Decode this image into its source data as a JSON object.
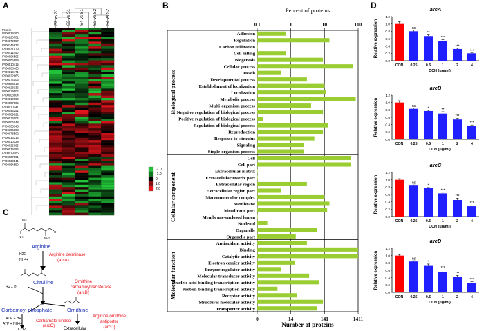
{
  "panels": {
    "a": "A",
    "b": "B",
    "c": "C",
    "d": "D"
  },
  "panelA": {
    "column_labels": [
      "S2 vs S1",
      "S3 vs S1",
      "S4 vs S1",
      "S3 vs S2",
      "S4 vs S2"
    ],
    "row_header": "Protein",
    "proteins": [
      "IPI00029260",
      "IPI00220701",
      "IPI00072957",
      "IPI00745872",
      "IPI00031479",
      "IPI00411440",
      "IPI00004505",
      "IPI00005659",
      "IPI00010415",
      "IPI00008460",
      "IPI00019471",
      "IPI00022665",
      "IPI00174103",
      "IPI00888918",
      "IPI00028136",
      "IPI00019502",
      "IPI00008604",
      "IPI00010990",
      "IPI00007905",
      "IPI00010241",
      "IPI00043251",
      "IPI00009021",
      "IPI00013004",
      "IPI00006048",
      "IPI00306343",
      "IPI00304808",
      "IPI00078502",
      "IPI00016314",
      "IPI00010129",
      "IPI00025065",
      "IPI00079186",
      "IPI00019185",
      "IPI00307061",
      "IPI00033541",
      "IPI00064550"
    ],
    "color_key_labels": [
      "2.0",
      "1.0",
      "0",
      "-1.0",
      "-2.0"
    ],
    "colors": {
      "up": "#e8141c",
      "down": "#22c53a",
      "zero": "#000000"
    }
  },
  "panelB": {
    "title": "Percent of proteins",
    "xlabel": "Number of proteins",
    "top_ticks": [
      "0.1",
      "1",
      "10",
      "100"
    ],
    "bottom_ticks": [
      "0",
      "14",
      "141",
      "1411"
    ],
    "bar_color": "#9acd32",
    "groups": [
      "Biological process",
      "Cellular component",
      "Molecular function"
    ]
  },
  "chart_data": {
    "type": "bar",
    "orientation": "horizontal",
    "title": "Percent of proteins",
    "xlabel": "Number of proteins",
    "xscale": "log",
    "xlim_percent": [
      0.1,
      100
    ],
    "total_proteins": 1411,
    "categories": [
      {
        "group": "Biological process",
        "name": "Adhesion",
        "percent": 0.7
      },
      {
        "group": "Biological process",
        "name": "Regulation",
        "percent": 14
      },
      {
        "group": "Biological process",
        "name": "Carbon utilization",
        "percent": 0.1
      },
      {
        "group": "Biological process",
        "name": "Cell killing",
        "percent": 0.7
      },
      {
        "group": "Biological process",
        "name": "Biogenesis",
        "percent": 9
      },
      {
        "group": "Biological process",
        "name": "Cellular process",
        "percent": 70
      },
      {
        "group": "Biological process",
        "name": "Death",
        "percent": 0.5
      },
      {
        "group": "Biological process",
        "name": "Developmental process",
        "percent": 3
      },
      {
        "group": "Biological process",
        "name": "Establishment of localization",
        "percent": 10
      },
      {
        "group": "Biological process",
        "name": "Localization",
        "percent": 11
      },
      {
        "group": "Biological process",
        "name": "Metabolic process",
        "percent": 85
      },
      {
        "group": "Biological process",
        "name": "Multi-organism process",
        "percent": 4
      },
      {
        "group": "Biological process",
        "name": "Negative regulation of biological process",
        "percent": 9
      },
      {
        "group": "Biological process",
        "name": "Positive regulation of biological process",
        "percent": 0.15
      },
      {
        "group": "Biological process",
        "name": "Regulation of biological process",
        "percent": 13
      },
      {
        "group": "Biological process",
        "name": "Reproduction",
        "percent": 9
      },
      {
        "group": "Biological process",
        "name": "Response to stimulus",
        "percent": 5
      },
      {
        "group": "Biological process",
        "name": "Signaling",
        "percent": 2.5
      },
      {
        "group": "Biological process",
        "name": "Single-organism process",
        "percent": 2.5
      },
      {
        "group": "Cellular component",
        "name": "Cell",
        "percent": 60
      },
      {
        "group": "Cellular component",
        "name": "Cell part",
        "percent": 60
      },
      {
        "group": "Cellular component",
        "name": "Extracellular matrix",
        "percent": 0.1
      },
      {
        "group": "Cellular component",
        "name": "Extracellular matrix part",
        "percent": 0.1
      },
      {
        "group": "Cellular component",
        "name": "Extracellular region",
        "percent": 3
      },
      {
        "group": "Cellular component",
        "name": "Extracellular region part",
        "percent": 0.5
      },
      {
        "group": "Cellular component",
        "name": "Macromolecular complex",
        "percent": 10
      },
      {
        "group": "Cellular component",
        "name": "Membrane",
        "percent": 14
      },
      {
        "group": "Cellular component",
        "name": "Membrane part",
        "percent": 12
      },
      {
        "group": "Cellular component",
        "name": "Membrane-enclosed lumen",
        "percent": 0.1
      },
      {
        "group": "Cellular component",
        "name": "Nucleoid",
        "percent": 0.2
      },
      {
        "group": "Cellular component",
        "name": "Organelle",
        "percent": 6
      },
      {
        "group": "Cellular component",
        "name": "Organelle part",
        "percent": 1.4
      },
      {
        "group": "Molecular function",
        "name": "Antioxidant activity",
        "percent": 3
      },
      {
        "group": "Molecular function",
        "name": "Binding",
        "percent": 100
      },
      {
        "group": "Molecular function",
        "name": "Catalytic activity",
        "percent": 100
      },
      {
        "group": "Molecular function",
        "name": "Electron carrier activity",
        "percent": 1.3
      },
      {
        "group": "Molecular function",
        "name": "Enzyme regulator activity",
        "percent": 0.5
      },
      {
        "group": "Molecular function",
        "name": "Molecular transducer activity",
        "percent": 3.5
      },
      {
        "group": "Molecular function",
        "name": "Nucleic acid binding transcription activity",
        "percent": 7
      },
      {
        "group": "Molecular function",
        "name": "Protein binding transcription activity",
        "percent": 0.4
      },
      {
        "group": "Molecular function",
        "name": "Receptor activity",
        "percent": 1.5
      },
      {
        "group": "Molecular function",
        "name": "Structural molecular activity",
        "percent": 9
      },
      {
        "group": "Molecular function",
        "name": "Transporter activity",
        "percent": 6
      }
    ],
    "expression": {
      "type": "bar",
      "xlabel": "DCH (μg/ml)",
      "ylabel": "Relative expression",
      "ylim": [
        0,
        1.2
      ],
      "yticks": [
        "0.0",
        "0.2",
        "0.4",
        "0.6",
        "0.8",
        "1.0",
        "1.2"
      ],
      "categories": [
        "CON",
        "0.25",
        "0.5",
        "1",
        "2",
        "4"
      ],
      "colors": {
        "control": "#ff0000",
        "treated": "#1f1fff"
      },
      "genes": [
        {
          "name": "arcA",
          "values": [
            1.0,
            0.8,
            0.67,
            0.53,
            0.32,
            0.2
          ],
          "errors": [
            0.06,
            0.03,
            0.03,
            0.04,
            0.02,
            0.01
          ],
          "sig": [
            "",
            "ns",
            "**",
            "***",
            "***",
            "***"
          ]
        },
        {
          "name": "arcB",
          "values": [
            1.0,
            0.83,
            0.77,
            0.7,
            0.54,
            0.37
          ],
          "errors": [
            0.05,
            0.02,
            0.02,
            0.05,
            0.03,
            0.02
          ],
          "sig": [
            "",
            "ns",
            "*",
            "**",
            "***",
            "***"
          ]
        },
        {
          "name": "arcC",
          "values": [
            1.0,
            0.84,
            0.77,
            0.63,
            0.45,
            0.28
          ],
          "errors": [
            0.03,
            0.02,
            0.02,
            0.03,
            0.05,
            0.03
          ],
          "sig": [
            "",
            "ns",
            "*",
            "***",
            "***",
            "***"
          ]
        },
        {
          "name": "arcD",
          "values": [
            1.0,
            0.84,
            0.72,
            0.56,
            0.42,
            0.26
          ],
          "errors": [
            0.03,
            0.02,
            0.05,
            0.05,
            0.04,
            0.03
          ],
          "sig": [
            "",
            "ns",
            "*",
            "***",
            "***",
            "***"
          ]
        }
      ]
    }
  },
  "panelC": {
    "arginine": "Arginine",
    "citrulline": "Citrulline",
    "carbamoyl": "Carbamoyl phosphate",
    "ornithine": "Ornithine",
    "co2": "CO2",
    "extracellular": "Extracellular",
    "h2o": "H2O",
    "nh4": "NH4+",
    "pi": "H+ + Pi",
    "adp": "ADP + H+",
    "atp": "ATP + NH4+",
    "enz1": [
      "Arginine deiminase",
      "(arcA)"
    ],
    "enz2": [
      "Ornithine",
      "carbamoyltransferase",
      "(arcB)"
    ],
    "enz3": [
      "Carbamate kinase",
      "(arcC)"
    ],
    "enz4": [
      "Arginine/ornithine",
      "antiporter",
      "(arcD)"
    ],
    "colors": {
      "enzyme": "#e8141c",
      "compound": "#1a2fb0"
    }
  }
}
